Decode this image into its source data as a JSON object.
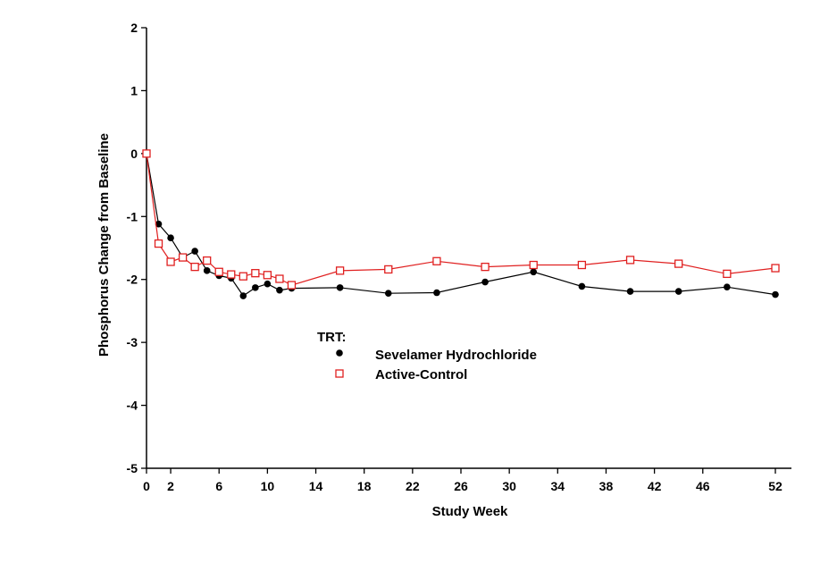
{
  "chart_data": {
    "type": "line",
    "title": "",
    "xlabel": "Study Week",
    "ylabel": "Phosphorus Change from Baseline",
    "xlim": [
      0,
      52
    ],
    "ylim": [
      -5,
      2
    ],
    "xticks": [
      0,
      2,
      6,
      10,
      14,
      18,
      22,
      26,
      30,
      34,
      38,
      42,
      46,
      52
    ],
    "yticks": [
      2,
      1,
      0,
      -1,
      -2,
      -3,
      -4,
      -5
    ],
    "legend": {
      "title": "TRT:",
      "placement": "center-left",
      "entries": [
        "Sevelamer Hydrochloride",
        "Active-Control"
      ]
    },
    "series": [
      {
        "name": "Sevelamer Hydrochloride",
        "color": "#000000",
        "marker": "filled-circle",
        "x": [
          0,
          1,
          2,
          3,
          4,
          5,
          6,
          7,
          8,
          9,
          10,
          11,
          12,
          16,
          20,
          24,
          28,
          32,
          36,
          40,
          44,
          48,
          52
        ],
        "y": [
          0,
          -1.12,
          -1.34,
          -1.65,
          -1.55,
          -1.86,
          -1.94,
          -1.98,
          -2.26,
          -2.13,
          -2.07,
          -2.17,
          -2.14,
          -2.13,
          -2.22,
          -2.21,
          -2.04,
          -1.88,
          -2.11,
          -2.19,
          -2.19,
          -2.12,
          -2.24
        ]
      },
      {
        "name": "Active-Control",
        "color": "#e02020",
        "marker": "open-square",
        "x": [
          0,
          1,
          2,
          3,
          4,
          5,
          6,
          7,
          8,
          9,
          10,
          11,
          12,
          16,
          20,
          24,
          28,
          32,
          36,
          40,
          44,
          48,
          52
        ],
        "y": [
          0,
          -1.43,
          -1.72,
          -1.65,
          -1.8,
          -1.7,
          -1.88,
          -1.92,
          -1.95,
          -1.9,
          -1.93,
          -1.99,
          -2.09,
          -1.86,
          -1.84,
          -1.71,
          -1.8,
          -1.77,
          -1.77,
          -1.69,
          -1.75,
          -1.91,
          -1.82
        ]
      }
    ]
  }
}
